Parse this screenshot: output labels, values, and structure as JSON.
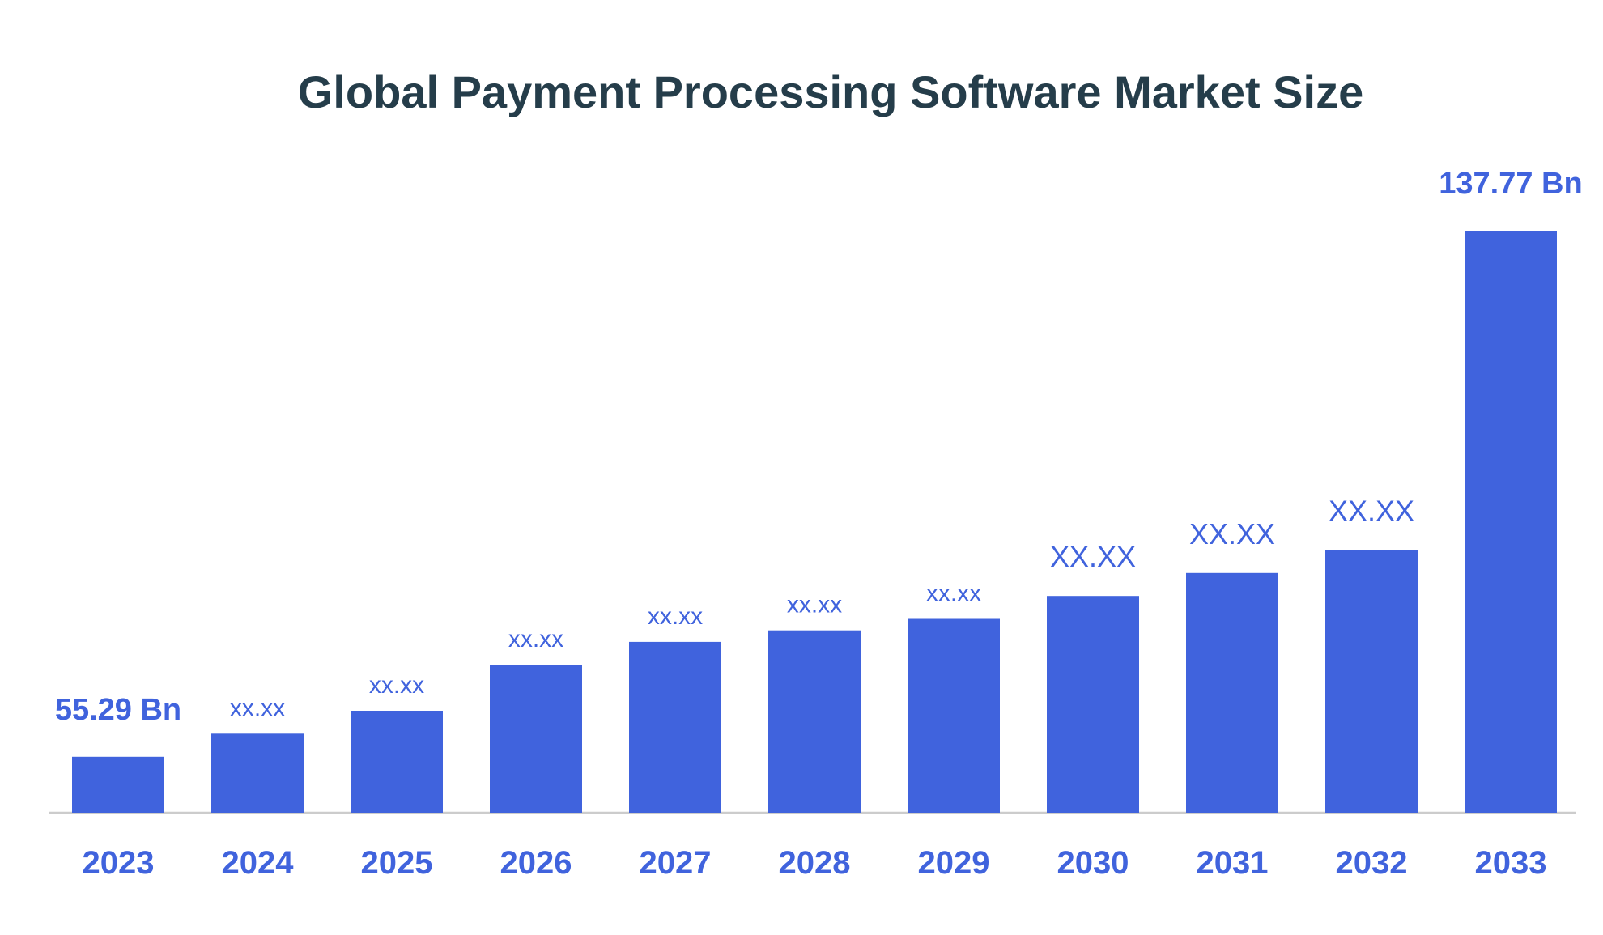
{
  "colors": {
    "bar": "#4063DD",
    "title": "#253D4A",
    "label": "#4063DD",
    "axis": "#CCCCCC"
  },
  "chart_data": {
    "type": "bar",
    "title": "Global Payment Processing Software Market Size",
    "xlabel": "",
    "ylabel": "",
    "categories": [
      "2023",
      "2024",
      "2025",
      "2026",
      "2027",
      "2028",
      "2029",
      "2030",
      "2031",
      "2032",
      "2033"
    ],
    "series": [
      {
        "values": [
          55.29,
          58.9,
          62.5,
          69.7,
          73.3,
          75.1,
          76.9,
          80.5,
          84.1,
          87.7,
          137.77
        ]
      }
    ],
    "data_labels": [
      "55.29 Bn",
      "xx.xx",
      "xx.xx",
      "xx.xx",
      "xx.xx",
      "xx.xx",
      "xx.xx",
      "XX.XX",
      "XX.XX",
      "XX.XX",
      "137.77 Bn"
    ],
    "ylim": [
      46.5,
      137.77
    ],
    "grid": false,
    "legend": "none"
  }
}
